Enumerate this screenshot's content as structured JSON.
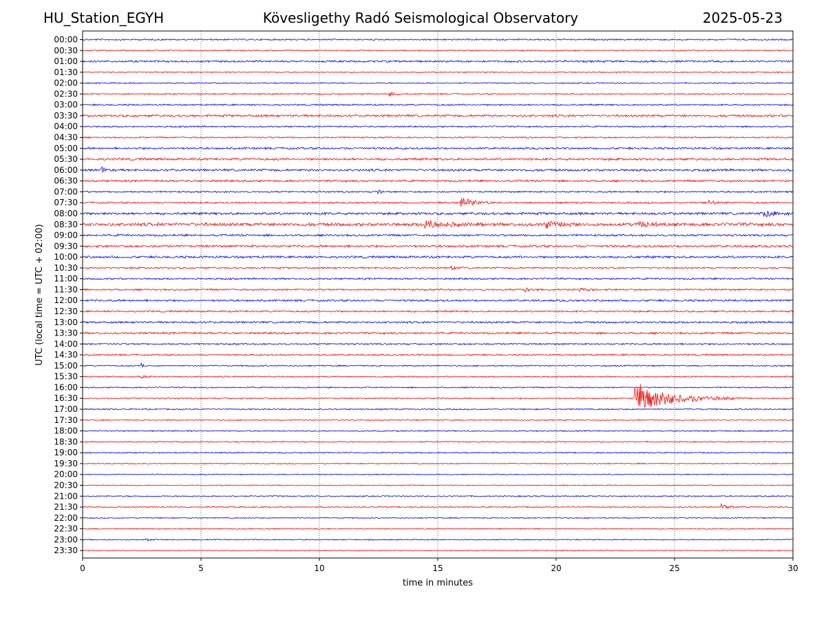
{
  "header": {
    "station": "HU_Station_EGYH",
    "title": "Kövesligethy Radó Seismological Observatory",
    "date": "2025-05-23"
  },
  "chart_data": {
    "type": "line",
    "title": "Kövesligethy Radó Seismological Observatory",
    "xlabel": "time in minutes",
    "ylabel": "UTC (local time = UTC + 02:00)",
    "xlim": [
      0,
      30
    ],
    "x_ticks": [
      "0",
      "5",
      "10",
      "15",
      "20",
      "25",
      "30"
    ],
    "y_ticks": [
      "00:00",
      "00:30",
      "01:00",
      "01:30",
      "02:00",
      "02:30",
      "03:00",
      "03:30",
      "04:00",
      "04:30",
      "05:00",
      "05:30",
      "06:00",
      "06:30",
      "07:00",
      "07:30",
      "08:00",
      "08:30",
      "09:00",
      "09:30",
      "10:00",
      "10:30",
      "11:00",
      "11:30",
      "12:00",
      "12:30",
      "13:00",
      "13:30",
      "14:00",
      "14:30",
      "15:00",
      "15:30",
      "16:00",
      "16:30",
      "17:00",
      "17:30",
      "18:00",
      "18:30",
      "19:00",
      "19:30",
      "20:00",
      "20:30",
      "21:00",
      "21:30",
      "22:00",
      "22:30",
      "23:00",
      "23:30"
    ],
    "grid": "vertical dotted at major x ticks",
    "trace_colors": [
      "#0000ff",
      "#ff0000"
    ],
    "trace_noise": [
      1.2,
      1.0,
      1.6,
      0.9,
      1.0,
      1.1,
      1.3,
      1.8,
      1.2,
      1.2,
      1.6,
      1.8,
      1.8,
      1.6,
      1.3,
      1.4,
      2.0,
      2.6,
      1.6,
      1.8,
      1.8,
      1.3,
      1.4,
      1.4,
      1.6,
      1.4,
      1.6,
      1.6,
      1.3,
      1.3,
      1.1,
      1.0,
      1.0,
      1.0,
      1.1,
      0.9,
      1.0,
      1.0,
      1.0,
      0.9,
      0.8,
      0.8,
      1.0,
      1.0,
      0.9,
      0.9,
      0.9,
      0.8
    ],
    "events": [
      {
        "row": "02:30",
        "minute": 13.0,
        "amplitude": 3,
        "duration_min": 0.8
      },
      {
        "row": "06:00",
        "minute": 0.8,
        "amplitude": 4,
        "duration_min": 0.6
      },
      {
        "row": "07:00",
        "minute": 12.5,
        "amplitude": 3,
        "duration_min": 0.5
      },
      {
        "row": "07:30",
        "minute": 16.0,
        "amplitude": 9,
        "duration_min": 1.5
      },
      {
        "row": "07:30",
        "minute": 26.5,
        "amplitude": 4,
        "duration_min": 1.0
      },
      {
        "row": "08:00",
        "minute": 28.8,
        "amplitude": 6,
        "duration_min": 1.2
      },
      {
        "row": "08:30",
        "minute": 14.5,
        "amplitude": 6,
        "duration_min": 2.5
      },
      {
        "row": "08:30",
        "minute": 19.5,
        "amplitude": 6,
        "duration_min": 1.5
      },
      {
        "row": "08:30",
        "minute": 23.5,
        "amplitude": 5,
        "duration_min": 1.5
      },
      {
        "row": "10:30",
        "minute": 15.6,
        "amplitude": 3,
        "duration_min": 0.5
      },
      {
        "row": "11:30",
        "minute": 18.7,
        "amplitude": 5,
        "duration_min": 0.8
      },
      {
        "row": "11:30",
        "minute": 21.0,
        "amplitude": 3,
        "duration_min": 0.8
      },
      {
        "row": "15:00",
        "minute": 2.5,
        "amplitude": 3,
        "duration_min": 0.5
      },
      {
        "row": "15:30",
        "minute": 2.5,
        "amplitude": 3,
        "duration_min": 0.5
      },
      {
        "row": "16:30",
        "minute": 23.3,
        "amplitude": 26,
        "duration_min": 4.5
      },
      {
        "row": "21:30",
        "minute": 27.0,
        "amplitude": 4,
        "duration_min": 1.0
      },
      {
        "row": "23:00",
        "minute": 2.7,
        "amplitude": 3,
        "duration_min": 0.5
      }
    ]
  }
}
